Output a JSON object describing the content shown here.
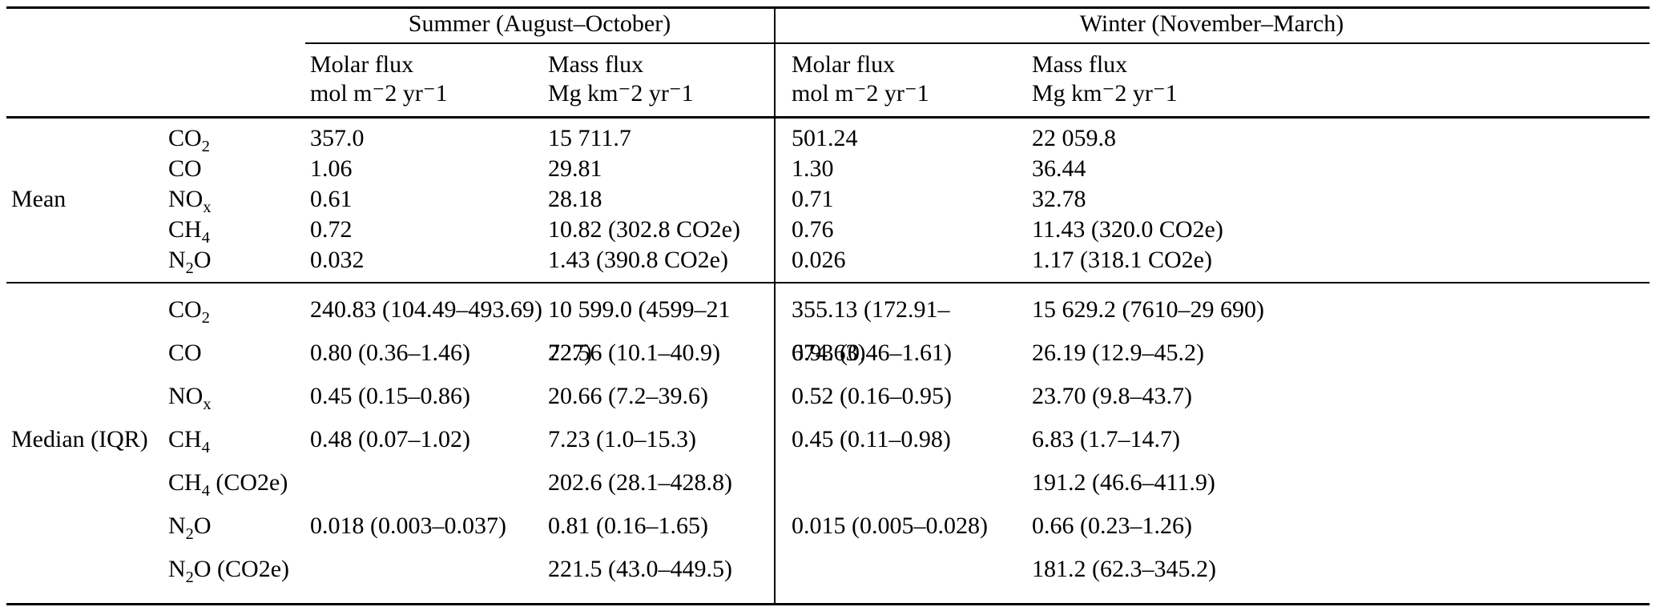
{
  "colors": {
    "text": "#000000",
    "rule": "#000000",
    "background": "#ffffff"
  },
  "table": {
    "col_groups": [
      {
        "label": "Summer (August–October)"
      },
      {
        "label": "Winter (November–March)"
      }
    ],
    "col_headers": [
      {
        "name": "Molar flux",
        "unit": "mol m⁻2 yr⁻1"
      },
      {
        "name": "Mass flux",
        "unit": "Mg km⁻2 yr⁻1"
      },
      {
        "name": "Molar flux",
        "unit": "mol m⁻2 yr⁻1"
      },
      {
        "name": "Mass flux",
        "unit": "Mg km⁻2 yr⁻1"
      }
    ],
    "sections": [
      {
        "label": "Mean",
        "rows": [
          {
            "species": {
              "base": "CO",
              "sub": "2",
              "suffix": ""
            },
            "values": [
              "357.0",
              "15 711.7",
              "501.24",
              "22 059.8"
            ]
          },
          {
            "species": {
              "base": "CO",
              "sub": "",
              "suffix": ""
            },
            "values": [
              "1.06",
              "29.81",
              "1.30",
              "36.44"
            ]
          },
          {
            "species": {
              "base": "NO",
              "sub": "x",
              "suffix": ""
            },
            "values": [
              "0.61",
              "28.18",
              "0.71",
              "32.78"
            ]
          },
          {
            "species": {
              "base": "CH",
              "sub": "4",
              "suffix": ""
            },
            "values": [
              "0.72",
              "10.82 (302.8 CO2e)",
              "0.76",
              "11.43 (320.0 CO2e)"
            ]
          },
          {
            "species": {
              "base": "N",
              "sub": "2",
              "suffix": "O"
            },
            "values": [
              "0.032",
              "1.43 (390.8 CO2e)",
              "0.026",
              "1.17 (318.1 CO2e)"
            ]
          }
        ]
      },
      {
        "label": "Median (IQR)",
        "rows": [
          {
            "species": {
              "base": "CO",
              "sub": "2",
              "suffix": ""
            },
            "values": [
              "240.83 (104.49–493.69)",
              "10 599.0 (4599–21 727)",
              "355.13 (172.91–674.63)",
              "15 629.2 (7610–29 690)"
            ]
          },
          {
            "species": {
              "base": "CO",
              "sub": "",
              "suffix": ""
            },
            "values": [
              "0.80 (0.36–1.46)",
              "22.56 (10.1–40.9)",
              "0.93 (0.46–1.61)",
              "26.19 (12.9–45.2)"
            ]
          },
          {
            "species": {
              "base": "NO",
              "sub": "x",
              "suffix": ""
            },
            "values": [
              "0.45 (0.15–0.86)",
              "20.66 (7.2–39.6)",
              "0.52 (0.16–0.95)",
              "23.70 (9.8–43.7)"
            ]
          },
          {
            "species": {
              "base": "CH",
              "sub": "4",
              "suffix": ""
            },
            "values": [
              "0.48 (0.07–1.02)",
              "7.23 (1.0–15.3)",
              "0.45 (0.11–0.98)",
              "6.83 (1.7–14.7)"
            ]
          },
          {
            "species": {
              "base": "CH",
              "sub": "4",
              "suffix": " (CO2e)"
            },
            "values": [
              "",
              "202.6 (28.1–428.8)",
              "",
              "191.2 (46.6–411.9)"
            ]
          },
          {
            "species": {
              "base": "N",
              "sub": "2",
              "suffix": "O"
            },
            "values": [
              "0.018 (0.003–0.037)",
              "0.81 (0.16–1.65)",
              "0.015 (0.005–0.028)",
              "0.66 (0.23–1.26)"
            ]
          },
          {
            "species": {
              "base": "N",
              "sub": "2",
              "suffix": "O (CO2e)"
            },
            "values": [
              "",
              "221.5 (43.0–449.5)",
              "",
              "181.2 (62.3–345.2)"
            ]
          }
        ]
      }
    ]
  }
}
